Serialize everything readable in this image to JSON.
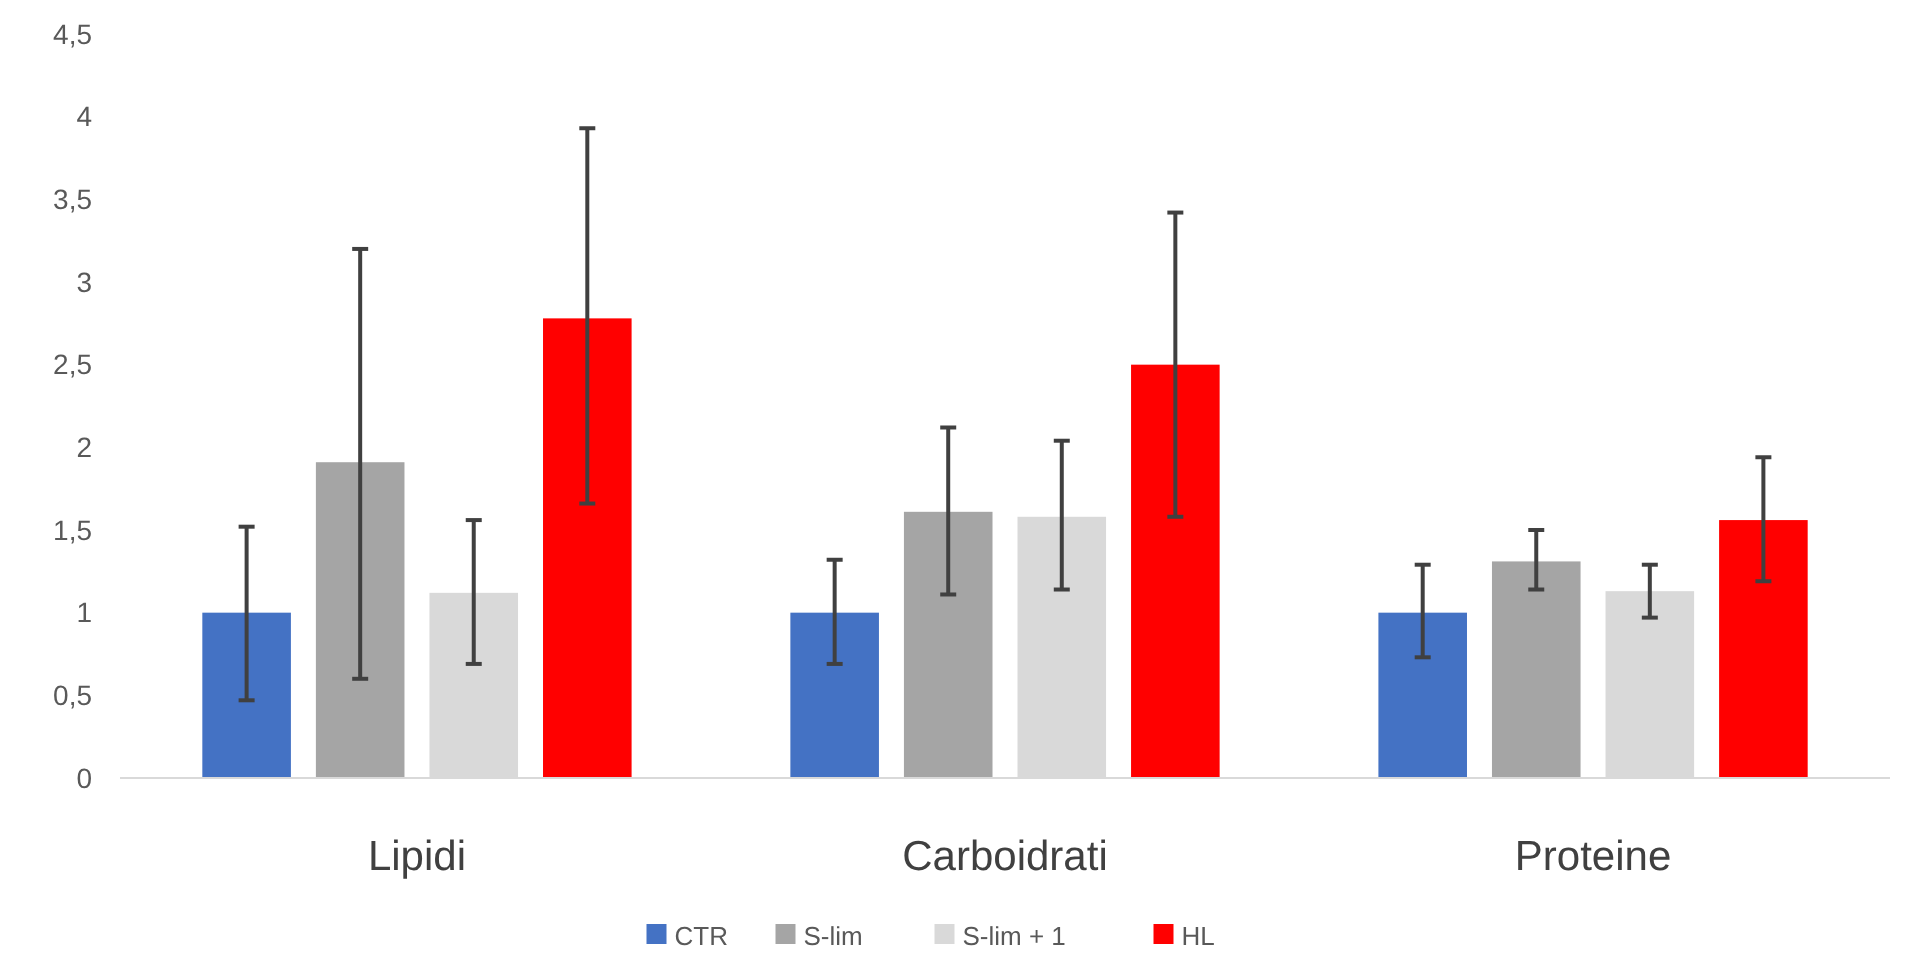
{
  "chart_data": {
    "type": "bar",
    "categories": [
      "Lipidi",
      "Carboidrati",
      "Proteine"
    ],
    "series": [
      {
        "name": "CTR",
        "color": "#4472c4",
        "values": [
          1.0,
          1.0,
          1.0
        ],
        "errors": [
          [
            0.47,
            1.52
          ],
          [
            0.69,
            1.32
          ],
          [
            0.73,
            1.29
          ]
        ]
      },
      {
        "name": "S-lim",
        "color": "#a5a5a5",
        "values": [
          1.91,
          1.61,
          1.31
        ],
        "errors": [
          [
            0.6,
            3.2
          ],
          [
            1.11,
            2.12
          ],
          [
            1.14,
            1.5
          ]
        ]
      },
      {
        "name": "S-lim + 1",
        "color": "#d9d9d9",
        "values": [
          1.12,
          1.58,
          1.13
        ],
        "errors": [
          [
            0.69,
            1.56
          ],
          [
            1.14,
            2.04
          ],
          [
            0.97,
            1.29
          ]
        ]
      },
      {
        "name": "HL",
        "color": "#ff0000",
        "values": [
          2.78,
          2.5,
          1.56
        ],
        "errors": [
          [
            1.66,
            3.93
          ],
          [
            1.58,
            3.42
          ],
          [
            1.19,
            1.94
          ]
        ]
      }
    ],
    "ylim": [
      0,
      4.5
    ],
    "yticks": [
      0,
      {
        "value": 0.5,
        "label": "0,5"
      },
      1,
      {
        "value": 1.5,
        "label": "1,5"
      },
      2,
      {
        "value": 2.5,
        "label": "2,5"
      },
      3,
      {
        "value": 3.5,
        "label": "3,5"
      },
      4,
      {
        "value": 4.5,
        "label": "4,5"
      }
    ],
    "grid": false,
    "legend": "bottom"
  }
}
